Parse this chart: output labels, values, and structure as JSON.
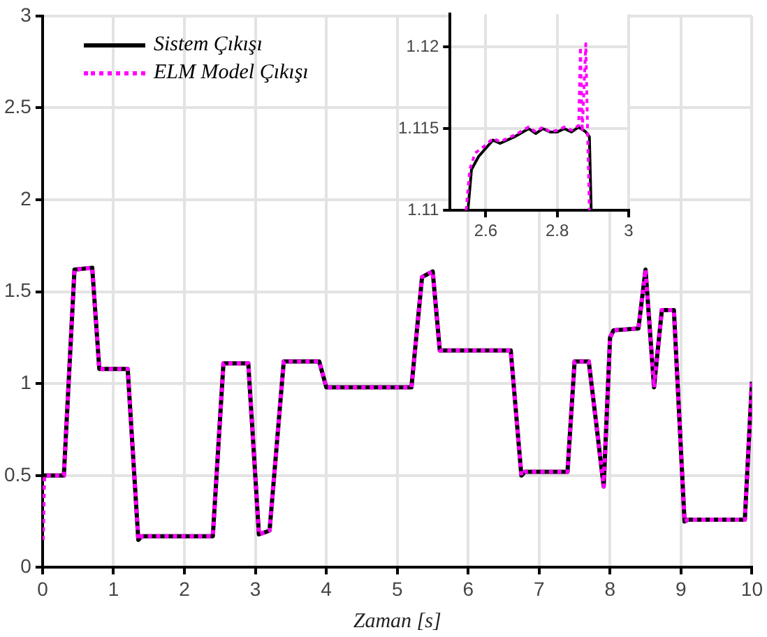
{
  "chart_data": [
    {
      "type": "line",
      "xlabel": "Zaman [s]",
      "xlim": [
        0,
        10
      ],
      "xticks": [
        0,
        1,
        2,
        3,
        4,
        5,
        6,
        7,
        8,
        9,
        10
      ],
      "ylim": [
        0,
        3
      ],
      "yticks": [
        0,
        0.5,
        1,
        1.5,
        2,
        2.5,
        3
      ],
      "grid": true,
      "legend": "top left",
      "marker": "none",
      "series": [
        {
          "name": "Sistem Çıkışı",
          "color": "#000000",
          "line_style": "solid",
          "x": [
            0,
            0.3,
            0.45,
            0.7,
            0.8,
            1.2,
            1.35,
            1.4,
            2.4,
            2.55,
            2.9,
            3.05,
            3.2,
            3.4,
            3.9,
            4.0,
            5.2,
            5.35,
            5.5,
            5.6,
            6.6,
            6.75,
            6.8,
            7.4,
            7.5,
            7.7,
            7.8,
            7.91,
            8.0,
            8.05,
            8.4,
            8.5,
            8.62,
            8.73,
            8.9,
            9.05,
            9.1,
            9.9,
            10
          ],
          "values": [
            0.5,
            0.5,
            1.62,
            1.63,
            1.08,
            1.08,
            0.15,
            0.17,
            0.17,
            1.11,
            1.11,
            0.18,
            0.2,
            1.12,
            1.12,
            0.98,
            0.98,
            1.58,
            1.61,
            1.18,
            1.18,
            0.5,
            0.52,
            0.52,
            1.12,
            1.12,
            0.8,
            0.44,
            1.25,
            1.29,
            1.3,
            1.62,
            0.98,
            1.4,
            1.4,
            0.25,
            0.26,
            0.26,
            1.01
          ]
        },
        {
          "name": "ELM Model Çıkışı",
          "color": "#ff00ff",
          "line_style": "dotted",
          "x": [
            0,
            0.02,
            0.3,
            0.45,
            0.7,
            0.8,
            1.2,
            1.35,
            1.4,
            2.4,
            2.55,
            2.9,
            3.05,
            3.2,
            3.4,
            3.9,
            4.0,
            5.2,
            5.35,
            5.5,
            5.6,
            6.6,
            6.75,
            6.8,
            7.4,
            7.5,
            7.7,
            7.8,
            7.91,
            8.0,
            8.05,
            8.4,
            8.5,
            8.62,
            8.73,
            8.9,
            9.05,
            9.1,
            9.9,
            10
          ],
          "values": [
            0.15,
            0.5,
            0.5,
            1.62,
            1.63,
            1.08,
            1.08,
            0.15,
            0.17,
            0.17,
            1.11,
            1.11,
            0.18,
            0.2,
            1.12,
            1.12,
            0.98,
            0.98,
            1.58,
            1.61,
            1.18,
            1.18,
            0.5,
            0.52,
            0.52,
            1.12,
            1.12,
            0.8,
            0.44,
            1.25,
            1.29,
            1.3,
            1.62,
            0.98,
            1.4,
            1.4,
            0.25,
            0.26,
            0.26,
            1.01
          ]
        }
      ]
    },
    {
      "type": "line",
      "xlim": [
        2.5,
        3
      ],
      "xticks": [
        2.6,
        2.8,
        3
      ],
      "ylim": [
        1.11,
        1.122
      ],
      "yticks": [
        1.11,
        1.115,
        1.12
      ],
      "grid": true,
      "marker": "none",
      "series": [
        {
          "color": "#000000",
          "line_style": "solid",
          "x": [
            2.55,
            2.56,
            2.58,
            2.6,
            2.62,
            2.64,
            2.68,
            2.72,
            2.74,
            2.76,
            2.78,
            2.8,
            2.82,
            2.84,
            2.86,
            2.88,
            2.89,
            2.895
          ],
          "values": [
            1.11,
            1.1125,
            1.1133,
            1.1138,
            1.1143,
            1.1141,
            1.1145,
            1.115,
            1.1147,
            1.115,
            1.1148,
            1.1148,
            1.115,
            1.1148,
            1.1151,
            1.1148,
            1.1145,
            1.11
          ]
        },
        {
          "color": "#ff00ff",
          "line_style": "dotted",
          "x": [
            2.545,
            2.555,
            2.57,
            2.6,
            2.62,
            2.64,
            2.68,
            2.72,
            2.74,
            2.76,
            2.78,
            2.8,
            2.82,
            2.84,
            2.86,
            2.865,
            2.87,
            2.88,
            2.885,
            2.89
          ],
          "values": [
            1.11,
            1.1125,
            1.1135,
            1.114,
            1.1144,
            1.1142,
            1.1146,
            1.1151,
            1.1148,
            1.1151,
            1.1148,
            1.1149,
            1.1151,
            1.1149,
            1.1152,
            1.12,
            1.1148,
            1.1202,
            1.1148,
            1.11
          ]
        }
      ]
    }
  ]
}
